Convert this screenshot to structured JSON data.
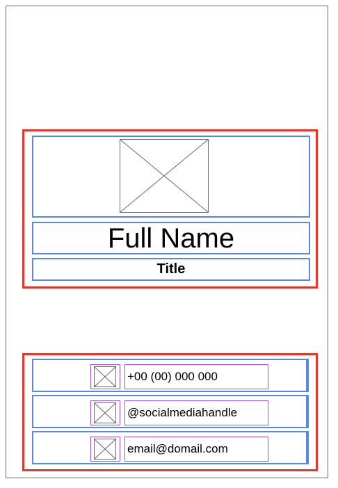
{
  "profile": {
    "full_name": "Full Name",
    "title": "Title",
    "photo_icon": "image-placeholder-icon"
  },
  "contacts": [
    {
      "icon": "image-placeholder-icon",
      "text": "+00 (00) 000 000"
    },
    {
      "icon": "image-placeholder-icon",
      "text": "@socialmediahandle"
    },
    {
      "icon": "image-placeholder-icon",
      "text": "email@domail.com"
    }
  ],
  "colors": {
    "group_border": "#e03a2f",
    "section_border": "#5b86e5",
    "field_border": "#9b4fd0",
    "placeholder_stroke": "#666666"
  }
}
